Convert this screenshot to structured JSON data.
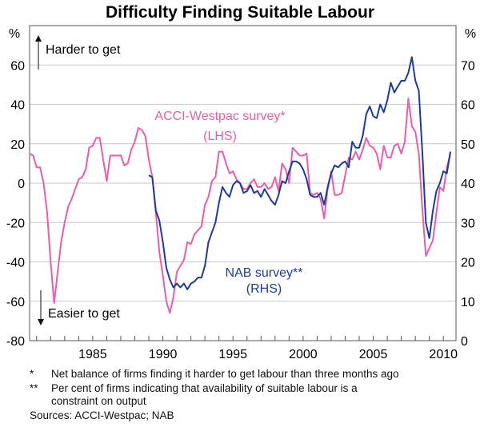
{
  "chart_data": {
    "type": "line",
    "title": "Difficulty Finding Suitable Labour",
    "left_axis": {
      "unit": "%",
      "range": [
        -80,
        80
      ],
      "ticks": [
        -80,
        -60,
        -40,
        -20,
        0,
        20,
        40,
        60
      ]
    },
    "right_axis": {
      "unit": "%",
      "range": [
        0,
        80
      ],
      "ticks": [
        0,
        10,
        20,
        30,
        40,
        50,
        60,
        70
      ]
    },
    "x_axis": {
      "range": [
        1980.5,
        2010.9
      ],
      "tick_labels": [
        "1985",
        "1990",
        "1995",
        "2000",
        "2005",
        "2010"
      ],
      "tick_values": [
        1985,
        1990,
        1995,
        2000,
        2005,
        2010
      ]
    },
    "grid": true,
    "annotations": {
      "up": "Harder to get",
      "down": "Easier to get"
    },
    "series": [
      {
        "name": "ACCI-Westpac survey*",
        "axis_label": "(LHS)",
        "axis": "left",
        "color": "#ee5ca5",
        "start": 1980.5,
        "step": 0.25,
        "values": [
          15,
          14,
          8,
          8,
          0,
          -15,
          -40,
          -61,
          -45,
          -30,
          -20,
          -12,
          -8,
          -3,
          2,
          3,
          7,
          18,
          19,
          23,
          23,
          12,
          1,
          14,
          14,
          14,
          14,
          9,
          10,
          17,
          21,
          28,
          27,
          24,
          12,
          3,
          -15,
          -35,
          -47,
          -60,
          -66,
          -58,
          -45,
          -42,
          -39,
          -30,
          -31,
          -26,
          -24,
          -22,
          -11,
          -7,
          1,
          3,
          16,
          16,
          10,
          5,
          6,
          2,
          0,
          -3,
          -3,
          0,
          2,
          -2,
          -2,
          0,
          -3,
          -2,
          3,
          -4,
          10,
          7,
          0,
          18,
          16,
          14,
          14,
          15,
          -5,
          -6,
          -5,
          -8,
          -18,
          -3,
          6,
          -6,
          -6,
          -5,
          4,
          13,
          12,
          16,
          12,
          17,
          23,
          19,
          18,
          15,
          7,
          19,
          13,
          13,
          19,
          20,
          15,
          21,
          43,
          29,
          26,
          15,
          -13,
          -37,
          -33,
          -29,
          -15,
          -2,
          -4,
          8,
          15
        ]
      },
      {
        "name": "NAB survey**",
        "axis_label": "(RHS)",
        "axis": "right",
        "color": "#1c3a9e",
        "start": 1989.0,
        "step": 0.25,
        "values": [
          42,
          41.5,
          33,
          30.5,
          25,
          18.5,
          15.5,
          13.5,
          14.5,
          13.5,
          14.5,
          13,
          14.5,
          15,
          16,
          16,
          19,
          25,
          27.5,
          30,
          35,
          39,
          37.5,
          36.5,
          39.5,
          40.5,
          40,
          37.5,
          38,
          39.5,
          37.5,
          38,
          36.5,
          38.5,
          37,
          35.5,
          34.5,
          37,
          40.5,
          40,
          43,
          45.5,
          45.5,
          45,
          43.5,
          41,
          37,
          36.5,
          36.5,
          37.5,
          34.5,
          39,
          42.5,
          44.5,
          44,
          45,
          45.5,
          44,
          50.5,
          49,
          49,
          52,
          57.5,
          59.5,
          57,
          56.5,
          60,
          58,
          61,
          65.5,
          63,
          64.5,
          66,
          66,
          68,
          72,
          66,
          63.5,
          48,
          30,
          26,
          33,
          38,
          40,
          43,
          42.5,
          48
        ]
      }
    ]
  },
  "footnotes": [
    {
      "mark": "*",
      "text": "Net balance of firms finding it harder to get labour than three months ago"
    },
    {
      "mark": "**",
      "text": "Per cent of firms indicating that availability of suitable labour is a"
    },
    {
      "mark": "",
      "text": "constraint on output"
    }
  ],
  "sources": "Sources: ACCI-Westpac; NAB"
}
